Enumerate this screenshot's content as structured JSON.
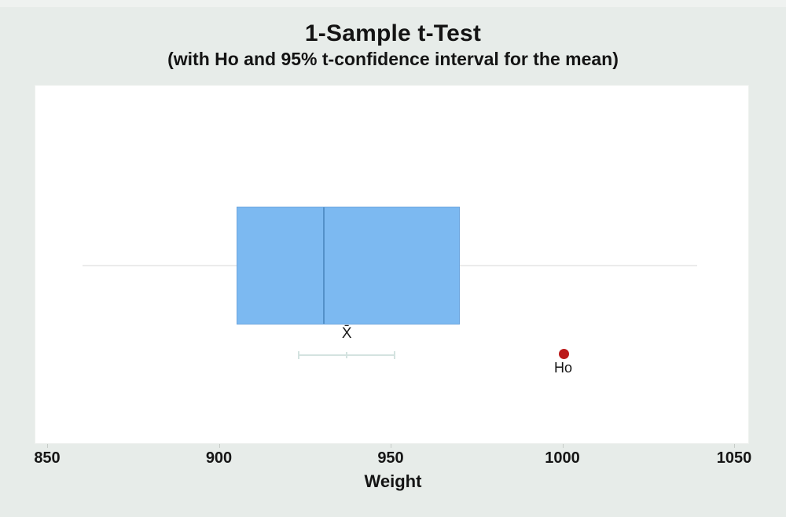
{
  "title": "1-Sample t-Test",
  "subtitle": "(with Ho and 95% t-confidence interval for the mean)",
  "chart_data": {
    "type": "boxplot",
    "orientation": "horizontal",
    "title": "1-Sample t-Test",
    "subtitle": "(with Ho and 95% t-confidence interval for the mean)",
    "xlabel": "Weight",
    "xlim": [
      850,
      1050
    ],
    "xticks": [
      "850",
      "900",
      "950",
      "1000",
      "1050"
    ],
    "xtick_values": [
      850,
      900,
      950,
      1000,
      1050
    ],
    "grid": false,
    "box": {
      "whisker_low": 860,
      "q1": 905,
      "median": 930,
      "q3": 970,
      "whisker_high": 1039
    },
    "mean_ci": {
      "confidence": "95%",
      "lower": 923,
      "mean": 937,
      "upper": 951,
      "label": "X̄"
    },
    "ho_marker": {
      "value": 1000,
      "label": "Ho"
    },
    "colors": {
      "background": "#e7ece9",
      "plot_bg": "#ffffff",
      "box_fill": "#7cb9f1",
      "box_border": "#5f96cd",
      "median_line": "#5390c8",
      "whisker": "#ebebeb",
      "ci_interval": "#d4e3e0",
      "ho_marker": "#bb1a1a",
      "text": "#141414"
    }
  }
}
